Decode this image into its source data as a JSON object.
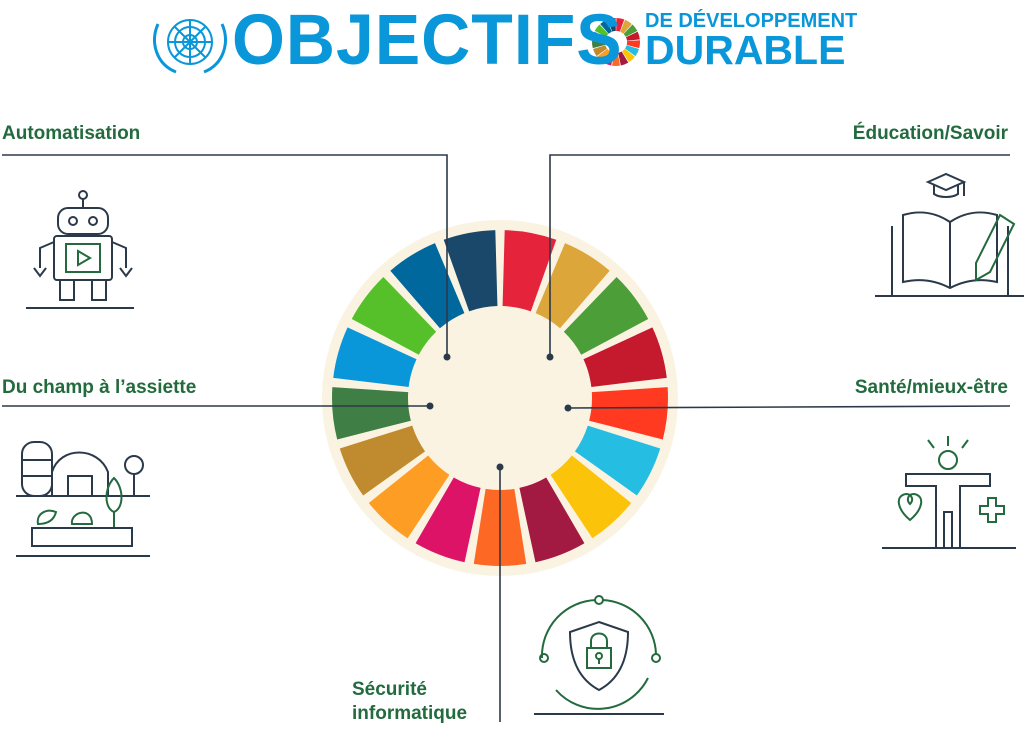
{
  "header": {
    "title": "OBJECTIFS",
    "subtitle_line1": "DE DÉVELOPPEMENT",
    "subtitle_line2": "DURABLE",
    "brand_color": "#0a97d9"
  },
  "labels": {
    "automation": "Automatisation",
    "education": "Éducation/Savoir",
    "farm": "Du champ à l’assiette",
    "health": "Santé/mieux-être",
    "cyber_line1": "Sécurité",
    "cyber_line2": "informatique"
  },
  "colors": {
    "label_green": "#236b3e",
    "line": "#2b3a4a",
    "wheel_bg": "#fbf3e2",
    "segments": [
      "#e5243b",
      "#dda63a",
      "#4c9f38",
      "#c5192d",
      "#ff3a21",
      "#26bde2",
      "#fcc30b",
      "#a21942",
      "#fd6925",
      "#dd1367",
      "#fd9d24",
      "#bf8b2e",
      "#3f7e44",
      "#0a97d9",
      "#56c02b",
      "#00689d",
      "#19486a"
    ]
  },
  "icons": [
    "un-emblem-icon",
    "sdg-wheel-icon",
    "robot-icon",
    "book-graduation-icon",
    "farm-icon",
    "person-health-icon",
    "shield-lock-icon"
  ]
}
